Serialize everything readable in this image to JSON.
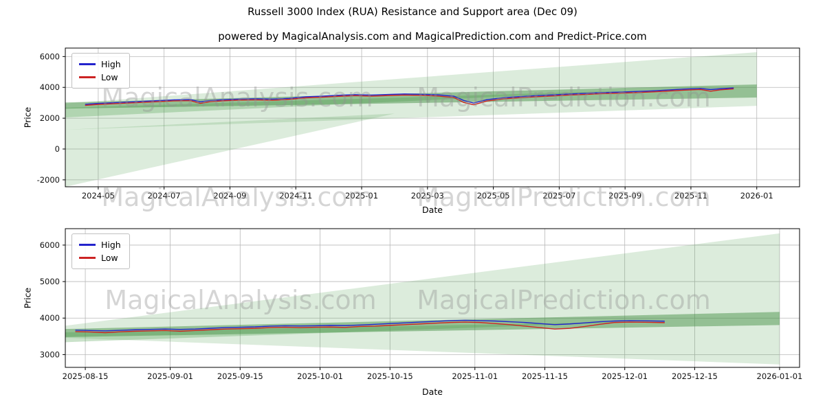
{
  "figure": {
    "title": "Russell 3000 Index (RUA) Resistance and Support area (Dec 09)",
    "subtitle": "powered by MagicalAnalysis.com and MagicalPrediction.com and Predict-Price.com",
    "watermark_analysis": "MagicalAnalysis.com",
    "watermark_prediction": "MagicalPrediction.com"
  },
  "colors": {
    "high": "#2323cc",
    "low": "#cc2323",
    "grid": "#b8b8b8",
    "axis": "#000000",
    "fan_light": "rgba(80,160,80,0.20)",
    "fan_medium": "rgba(80,160,80,0.30)",
    "fan_dark": "rgba(60,140,60,0.45)"
  },
  "chart_data": [
    {
      "type": "line",
      "title": "",
      "xlabel": "Date",
      "ylabel": "Price",
      "xlim": [
        0,
        22.3
      ],
      "ylim": [
        -2450,
        6550
      ],
      "grid": true,
      "legend_position": "upper-left",
      "xticks": [
        {
          "label": "2024-05",
          "x": 1
        },
        {
          "label": "2024-07",
          "x": 3
        },
        {
          "label": "2024-09",
          "x": 5
        },
        {
          "label": "2024-11",
          "x": 7
        },
        {
          "label": "2025-01",
          "x": 9
        },
        {
          "label": "2025-03",
          "x": 11
        },
        {
          "label": "2025-05",
          "x": 13
        },
        {
          "label": "2025-07",
          "x": 15
        },
        {
          "label": "2025-09",
          "x": 17
        },
        {
          "label": "2025-11",
          "x": 19
        },
        {
          "label": "2026-01",
          "x": 21
        }
      ],
      "yticks": [
        {
          "label": "-2000",
          "y": -2000
        },
        {
          "label": "0",
          "y": 0
        },
        {
          "label": "2000",
          "y": 2000
        },
        {
          "label": "4000",
          "y": 4000
        },
        {
          "label": "6000",
          "y": 6000
        }
      ],
      "bands": [
        {
          "name": "resistance-fan-wide",
          "fill": "rgba(80,160,80,0.20)",
          "points": [
            [
              0,
              2950
            ],
            [
              21,
              6280
            ],
            [
              21,
              2800
            ],
            [
              0,
              1250
            ]
          ]
        },
        {
          "name": "support-fan-lower-wedge",
          "fill": "rgba(80,160,80,0.20)",
          "points": [
            [
              0,
              1250
            ],
            [
              0,
              -2450
            ],
            [
              10,
              2300
            ]
          ]
        },
        {
          "name": "support-fan-medium",
          "fill": "rgba(80,160,80,0.30)",
          "points": [
            [
              0,
              2680
            ],
            [
              17,
              3780
            ],
            [
              0,
              2050
            ]
          ]
        },
        {
          "name": "support-resistance-core-band",
          "fill": "rgba(60,140,60,0.45)",
          "points": [
            [
              0,
              3020
            ],
            [
              21,
              4190
            ],
            [
              21,
              3340
            ],
            [
              0,
              2620
            ]
          ]
        }
      ],
      "series": [
        {
          "name": "High",
          "color": "#2323cc",
          "x": [
            0.6,
            0.9,
            1.3,
            1.8,
            2.3,
            2.8,
            3.3,
            3.8,
            4.1,
            4.4,
            4.8,
            5.3,
            5.8,
            6.3,
            6.8,
            7.3,
            7.8,
            8.3,
            8.8,
            9.3,
            9.8,
            10.3,
            10.8,
            11.3,
            11.8,
            12.1,
            12.4,
            12.8,
            13.3,
            13.8,
            14.3,
            14.8,
            15.3,
            15.8,
            16.3,
            16.8,
            17.3,
            17.8,
            18.3,
            18.8,
            19.3,
            19.6,
            19.9,
            20.3
          ],
          "values": [
            2900,
            2950,
            2990,
            3040,
            3090,
            3140,
            3190,
            3210,
            3060,
            3150,
            3200,
            3240,
            3260,
            3240,
            3290,
            3390,
            3430,
            3490,
            3530,
            3500,
            3540,
            3570,
            3550,
            3520,
            3430,
            3150,
            2980,
            3200,
            3330,
            3400,
            3460,
            3510,
            3570,
            3610,
            3660,
            3690,
            3730,
            3770,
            3830,
            3890,
            3930,
            3860,
            3910,
            3960
          ]
        },
        {
          "name": "Low",
          "color": "#cc2323",
          "x": [
            0.6,
            0.9,
            1.3,
            1.8,
            2.3,
            2.8,
            3.3,
            3.8,
            4.1,
            4.4,
            4.8,
            5.3,
            5.8,
            6.3,
            6.8,
            7.3,
            7.8,
            8.3,
            8.8,
            9.3,
            9.8,
            10.3,
            10.8,
            11.3,
            11.8,
            12.1,
            12.4,
            12.8,
            13.3,
            13.8,
            14.3,
            14.8,
            15.3,
            15.8,
            16.3,
            16.8,
            17.3,
            17.8,
            18.3,
            18.8,
            19.3,
            19.6,
            19.9,
            20.3
          ],
          "values": [
            2830,
            2880,
            2920,
            2970,
            3020,
            3070,
            3120,
            3140,
            2960,
            3070,
            3130,
            3170,
            3190,
            3160,
            3220,
            3320,
            3360,
            3420,
            3460,
            3430,
            3470,
            3500,
            3480,
            3440,
            3340,
            3020,
            2870,
            3110,
            3250,
            3330,
            3390,
            3440,
            3500,
            3540,
            3590,
            3620,
            3660,
            3700,
            3760,
            3820,
            3860,
            3750,
            3840,
            3900
          ]
        }
      ]
    },
    {
      "type": "line",
      "title": "",
      "xlabel": "Date",
      "ylabel": "Price",
      "xlim": [
        0,
        147
      ],
      "ylim": [
        2650,
        6450
      ],
      "grid": true,
      "legend_position": "upper-left",
      "xticks": [
        {
          "label": "2025-08-15",
          "x": 4
        },
        {
          "label": "2025-09-01",
          "x": 21
        },
        {
          "label": "2025-09-15",
          "x": 35
        },
        {
          "label": "2025-10-01",
          "x": 51
        },
        {
          "label": "2025-10-15",
          "x": 65
        },
        {
          "label": "2025-11-01",
          "x": 82
        },
        {
          "label": "2025-11-15",
          "x": 96
        },
        {
          "label": "2025-12-01",
          "x": 112
        },
        {
          "label": "2025-12-15",
          "x": 126
        },
        {
          "label": "2026-01-01",
          "x": 143
        }
      ],
      "yticks": [
        {
          "label": "3000",
          "y": 3000
        },
        {
          "label": "4000",
          "y": 4000
        },
        {
          "label": "5000",
          "y": 5000
        },
        {
          "label": "6000",
          "y": 6000
        }
      ],
      "bands": [
        {
          "name": "resistance-fan-wide",
          "fill": "rgba(80,160,80,0.20)",
          "points": [
            [
              0,
              3790
            ],
            [
              143,
              6320
            ],
            [
              143,
              2730
            ],
            [
              0,
              3460
            ]
          ]
        },
        {
          "name": "support-fan-medium",
          "fill": "rgba(80,160,80,0.30)",
          "points": [
            [
              0,
              3610
            ],
            [
              115,
              3900
            ],
            [
              0,
              3340
            ]
          ]
        },
        {
          "name": "support-resistance-core-band",
          "fill": "rgba(60,140,60,0.45)",
          "points": [
            [
              0,
              3700
            ],
            [
              143,
              4170
            ],
            [
              143,
              3810
            ],
            [
              0,
              3480
            ]
          ]
        }
      ],
      "series": [
        {
          "name": "High",
          "color": "#2323cc",
          "x": [
            2,
            5,
            8,
            11,
            14,
            17,
            20,
            23,
            26,
            29,
            32,
            35,
            38,
            41,
            44,
            47,
            50,
            53,
            56,
            59,
            62,
            65,
            68,
            71,
            74,
            77,
            80,
            83,
            86,
            89,
            92,
            95,
            98,
            101,
            104,
            107,
            110,
            113,
            116,
            120
          ],
          "values": [
            3670,
            3660,
            3650,
            3665,
            3680,
            3690,
            3700,
            3690,
            3700,
            3720,
            3740,
            3750,
            3760,
            3780,
            3790,
            3785,
            3790,
            3800,
            3795,
            3810,
            3830,
            3850,
            3870,
            3890,
            3910,
            3930,
            3940,
            3930,
            3920,
            3900,
            3880,
            3850,
            3820,
            3840,
            3870,
            3900,
            3920,
            3930,
            3925,
            3915
          ]
        },
        {
          "name": "Low",
          "color": "#cc2323",
          "x": [
            2,
            5,
            8,
            11,
            14,
            17,
            20,
            23,
            26,
            29,
            32,
            35,
            38,
            41,
            44,
            47,
            50,
            53,
            56,
            59,
            62,
            65,
            68,
            71,
            74,
            77,
            80,
            83,
            86,
            89,
            92,
            95,
            98,
            101,
            104,
            107,
            110,
            113,
            116,
            120
          ],
          "values": [
            3630,
            3620,
            3600,
            3625,
            3640,
            3650,
            3660,
            3640,
            3660,
            3680,
            3700,
            3710,
            3720,
            3740,
            3750,
            3740,
            3750,
            3755,
            3745,
            3770,
            3780,
            3800,
            3820,
            3840,
            3860,
            3880,
            3890,
            3880,
            3850,
            3820,
            3780,
            3740,
            3700,
            3720,
            3770,
            3830,
            3880,
            3890,
            3885,
            3875
          ]
        }
      ]
    }
  ]
}
